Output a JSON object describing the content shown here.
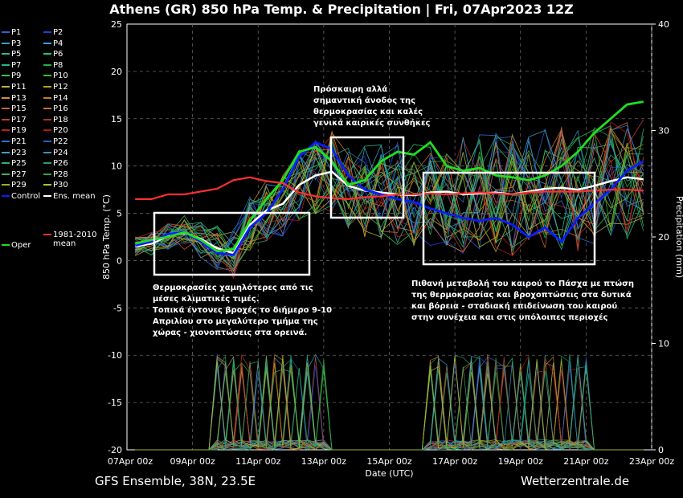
{
  "title": "Athens  (GR)  850 hPa Temp. & Precipitation | Fri, 07Apr2023 12Z",
  "footer_left": "GFS Ensemble, 38N, 23.5E",
  "footer_right": "Wetterzentrale.de",
  "annotations": [
    "Θερμοκρασίες χαμηλότερες από τις\nμέσες κλιματικές τιμές.\nΤοπικά έντονες βροχές το διήμερο 9-10\nΑπριλίου στο μεγαλύτερο τμήμα της\nχώρας - χιονοπτώσεις στα ορεινά.",
    "Πρόσκαιρη αλλά\nσημαντική άνοδος της\nθερμοκρασίας και καλές\nγενικά καιρικές συνθήκες",
    "Πιθανή μεταβολή του καιρού το Πάσχα με πτώση\nτης θερμοκρασίας και βροχοπτώσεις στα δυτικά\nκαι βόρεια - σταδιακή επιδείνωση του καιρού\nστην συνέχεια και στις υπόλοιπες περιοχές"
  ],
  "legend": [
    {
      "label": "P1",
      "color": "#3b5bd9"
    },
    {
      "label": "P2",
      "color": "#2040e0"
    },
    {
      "label": "P3",
      "color": "#3aa0c0"
    },
    {
      "label": "P4",
      "color": "#30a8d8"
    },
    {
      "label": "P5",
      "color": "#2fb6a0"
    },
    {
      "label": "P6",
      "color": "#22c870"
    },
    {
      "label": "P7",
      "color": "#26b890"
    },
    {
      "label": "P8",
      "color": "#20b040"
    },
    {
      "label": "P9",
      "color": "#40c040"
    },
    {
      "label": "P10",
      "color": "#30c030"
    },
    {
      "label": "P11",
      "color": "#c0b040"
    },
    {
      "label": "P12",
      "color": "#b0a020"
    },
    {
      "label": "P13",
      "color": "#d09040"
    },
    {
      "label": "P14",
      "color": "#c08020"
    },
    {
      "label": "P15",
      "color": "#c86040"
    },
    {
      "label": "P16",
      "color": "#d07030"
    },
    {
      "label": "P17",
      "color": "#c04030"
    },
    {
      "label": "P18",
      "color": "#b03020"
    },
    {
      "label": "P19",
      "color": "#c02020"
    },
    {
      "label": "P20",
      "color": "#b01818"
    },
    {
      "label": "P21",
      "color": "#3070d0"
    },
    {
      "label": "P22",
      "color": "#2860c8"
    },
    {
      "label": "P23",
      "color": "#40a0d0"
    },
    {
      "label": "P24",
      "color": "#3890c8"
    },
    {
      "label": "P25",
      "color": "#30b080"
    },
    {
      "label": "P26",
      "color": "#28a070"
    },
    {
      "label": "P27",
      "color": "#40b060"
    },
    {
      "label": "P28",
      "color": "#30a050"
    },
    {
      "label": "P29",
      "color": "#a0b020"
    },
    {
      "label": "P30",
      "color": "#b0c030"
    },
    {
      "label": "Control",
      "color": "#0a1eff"
    },
    {
      "label": "Ens. mean",
      "color": "#ffffff"
    },
    {
      "label": "Oper",
      "color": "#22dd22"
    },
    {
      "label": "1981-2010\nmean",
      "color": "#ff3030"
    }
  ],
  "chart_data": {
    "type": "line",
    "title": "Athens  (GR)  850 hPa Temp. & Precipitation | Fri, 07Apr2023 12Z",
    "xlabel": "Date (UTC)",
    "ylabel": "850 hPa Temp. (°C)",
    "y2label": "Precipitation (mm)",
    "ylim": [
      -20,
      25
    ],
    "y2lim": [
      0,
      40
    ],
    "yticks": [
      -20,
      -15,
      -10,
      -5,
      0,
      5,
      10,
      15,
      20,
      25
    ],
    "y2ticks": [
      0,
      10,
      20,
      30,
      40
    ],
    "x_tick_labels": [
      "07Apr 00z",
      "09Apr 00z",
      "11Apr 00z",
      "13Apr 00z",
      "15Apr 00z",
      "17Apr 00z",
      "19Apr 00z",
      "21Apr 00z",
      "23Apr 00z"
    ],
    "x_range_hours": [
      0,
      384
    ],
    "grid": true,
    "series": [
      {
        "name": "Ens. mean",
        "color": "#ffffff",
        "hours": [
          6,
          18,
          30,
          42,
          54,
          66,
          78,
          90,
          102,
          114,
          126,
          138,
          150,
          162,
          174,
          186,
          198,
          210,
          222,
          234,
          246,
          258,
          270,
          282,
          294,
          306,
          318,
          330,
          342,
          354,
          366,
          378
        ],
        "values": [
          1.5,
          1.8,
          2.6,
          2.9,
          2.3,
          1.3,
          0.8,
          3.8,
          5.3,
          6.0,
          8.0,
          9.0,
          9.4,
          7.9,
          7.4,
          7.2,
          7.0,
          6.9,
          7.2,
          7.3,
          7.0,
          7.1,
          7.2,
          7.0,
          7.3,
          7.6,
          7.7,
          7.5,
          7.9,
          8.4,
          8.8,
          8.6
        ]
      },
      {
        "name": "Control",
        "color": "#0a1eff",
        "hours": [
          6,
          18,
          30,
          42,
          54,
          66,
          78,
          90,
          102,
          114,
          126,
          138,
          150,
          162,
          174,
          186,
          198,
          210,
          222,
          234,
          246,
          258,
          270,
          282,
          294,
          306,
          318,
          330,
          342,
          354,
          366,
          378
        ],
        "values": [
          1.6,
          2.0,
          2.8,
          3.0,
          2.0,
          0.8,
          0.6,
          3.5,
          5.0,
          7.5,
          11.0,
          12.5,
          11.8,
          9.0,
          7.5,
          7.0,
          6.5,
          6.2,
          5.5,
          5.0,
          4.5,
          4.2,
          4.5,
          3.8,
          2.5,
          3.5,
          2.0,
          4.5,
          6.0,
          7.5,
          9.5,
          10.5
        ]
      },
      {
        "name": "Oper",
        "color": "#22dd22",
        "hours": [
          6,
          18,
          30,
          42,
          54,
          66,
          78,
          90,
          102,
          114,
          126,
          138,
          150,
          162,
          174,
          186,
          198,
          210,
          222,
          234,
          246,
          258,
          270,
          282,
          294,
          306,
          318,
          330,
          342,
          354,
          366,
          378
        ],
        "values": [
          1.8,
          2.2,
          2.5,
          3.0,
          2.2,
          1.0,
          1.2,
          4.2,
          6.5,
          8.5,
          11.5,
          12.0,
          10.5,
          8.0,
          8.5,
          10.5,
          11.5,
          11.2,
          12.5,
          10.0,
          9.5,
          9.8,
          9.0,
          8.8,
          8.5,
          9.0,
          10.0,
          11.5,
          13.5,
          15.0,
          16.5,
          16.8
        ]
      },
      {
        "name": "1981-2010 mean",
        "color": "#ff3030",
        "hours": [
          6,
          18,
          30,
          42,
          54,
          66,
          78,
          90,
          102,
          114,
          126,
          138,
          150,
          162,
          174,
          186,
          198,
          210,
          222,
          234,
          246,
          258,
          270,
          282,
          294,
          306,
          318,
          330,
          342,
          354,
          366,
          378
        ],
        "values": [
          6.5,
          6.5,
          7.0,
          7.0,
          7.3,
          7.6,
          8.5,
          8.8,
          8.4,
          8.2,
          7.2,
          6.8,
          6.6,
          6.5,
          6.7,
          6.8,
          7.0,
          7.0,
          7.1,
          7.0,
          7.1,
          7.2,
          7.1,
          7.0,
          7.2,
          7.3,
          7.3,
          7.3,
          7.4,
          7.5,
          7.5,
          7.4
        ]
      }
    ]
  }
}
